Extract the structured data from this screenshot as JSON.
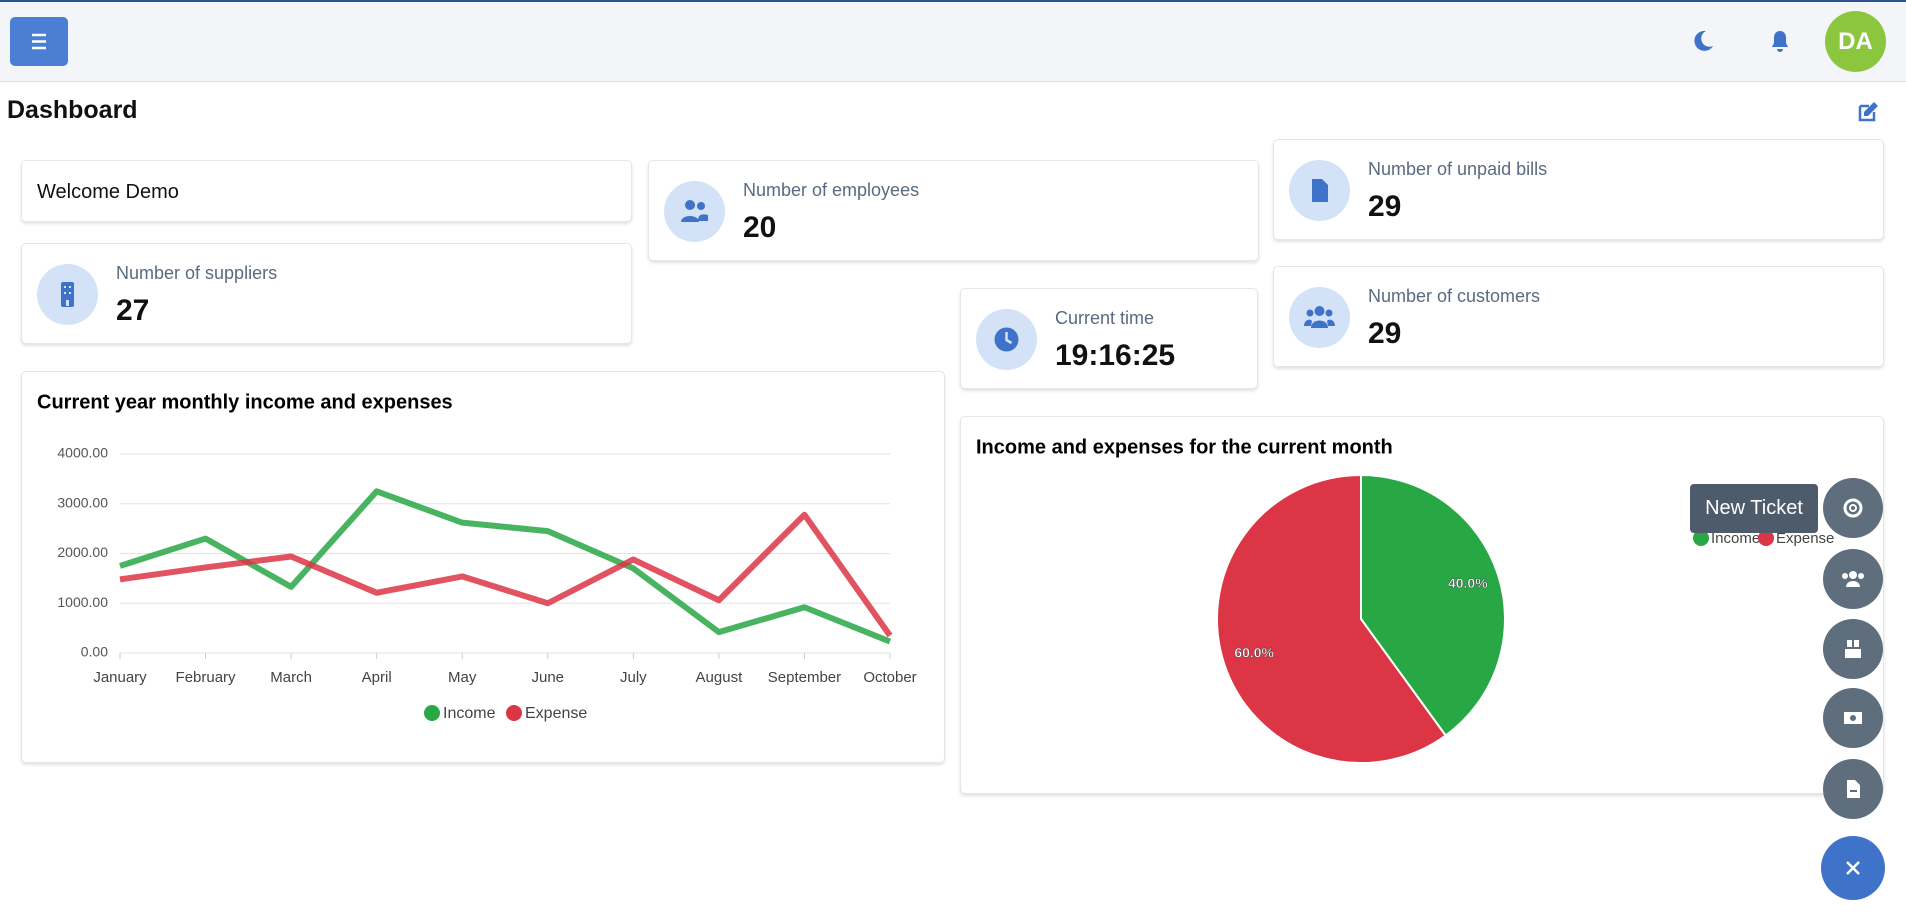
{
  "header": {
    "avatar": "DA"
  },
  "page": {
    "title": "Dashboard"
  },
  "widgets": {
    "welcome": "Welcome Demo",
    "employees": {
      "label": "Number of employees",
      "value": 20
    },
    "unpaid_bills": {
      "label": "Number of unpaid bills",
      "value": 29
    },
    "suppliers": {
      "label": "Number of suppliers",
      "value": 27
    },
    "time": {
      "label": "Current time",
      "value": "19:16:25"
    },
    "customers": {
      "label": "Number of customers",
      "value": 29
    }
  },
  "chart_data": [
    {
      "type": "line",
      "title": "Current year monthly income and expenses",
      "categories": [
        "January",
        "February",
        "March",
        "April",
        "May",
        "June",
        "July",
        "August",
        "September",
        "October"
      ],
      "series": [
        {
          "name": "Income",
          "color": "#28a745",
          "values": [
            1750,
            2300,
            1330,
            3250,
            2620,
            2450,
            1700,
            420,
            920,
            230
          ]
        },
        {
          "name": "Expense",
          "color": "#dc3545",
          "values": [
            1480,
            1720,
            1940,
            1210,
            1540,
            1000,
            1880,
            1060,
            2780,
            350
          ]
        }
      ],
      "ylim": [
        0,
        4000
      ],
      "yticks": [
        {
          "value": 0,
          "label": "0.00"
        },
        {
          "value": 1000,
          "label": "1000.00"
        },
        {
          "value": 2000,
          "label": "2000.00"
        },
        {
          "value": 3000,
          "label": "3000.00"
        },
        {
          "value": 4000,
          "label": "4000.00"
        }
      ],
      "grid": true,
      "legend": "bottom"
    },
    {
      "type": "pie",
      "title": "Income and expenses for the current month",
      "categories": [
        "Income",
        "Expense"
      ],
      "values": [
        40,
        60
      ],
      "value_labels": [
        "40.0%",
        "60.0%"
      ],
      "colors": [
        "#28a745",
        "#dc3545"
      ],
      "legend": "right"
    }
  ],
  "fab": {
    "tooltip": "New Ticket"
  }
}
